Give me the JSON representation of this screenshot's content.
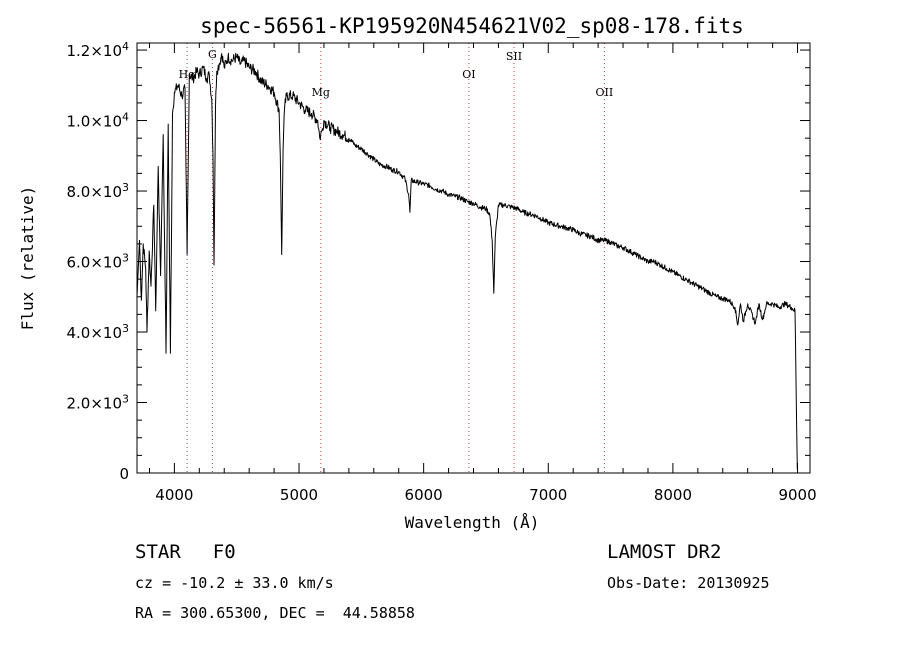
{
  "chart_data": {
    "type": "line",
    "title": "spec-56561-KP195920N454621V02_sp08-178.fits",
    "xlabel": "Wavelength (Å)",
    "ylabel": "Flux (relative)",
    "xlim": [
      3700,
      9100
    ],
    "ylim": [
      0,
      12200
    ],
    "x_ticks": [
      4000,
      5000,
      6000,
      7000,
      8000,
      9000
    ],
    "x_tick_labels": [
      "4000",
      "5000",
      "6000",
      "7000",
      "8000",
      "9000"
    ],
    "y_ticks": [
      0,
      2000,
      4000,
      6000,
      8000,
      10000,
      12000
    ],
    "y_tick_labels": [
      {
        "mantissa": "0",
        "exp": ""
      },
      {
        "mantissa": "2.0×10",
        "exp": "3"
      },
      {
        "mantissa": "4.0×10",
        "exp": "3"
      },
      {
        "mantissa": "6.0×10",
        "exp": "3"
      },
      {
        "mantissa": "8.0×10",
        "exp": "3"
      },
      {
        "mantissa": "1.0×10",
        "exp": "4"
      },
      {
        "mantissa": "1.2×10",
        "exp": "4"
      }
    ],
    "spectral_lines": [
      {
        "label": "Hα",
        "x": 4102
      },
      {
        "label": "G",
        "x": 4305
      },
      {
        "label": "Mg",
        "x": 5175
      },
      {
        "label": "OI",
        "x": 6363
      },
      {
        "label": "SII",
        "x": 6725
      },
      {
        "label": "OII",
        "x": 7450
      }
    ],
    "series": [
      {
        "line_color": "#000000",
        "x": [
          3700,
          3720,
          3735,
          3750,
          3770,
          3780,
          3798,
          3812,
          3835,
          3850,
          3870,
          3889,
          3910,
          3933,
          3950,
          3968,
          3985,
          4000,
          4030,
          4060,
          4085,
          4102,
          4120,
          4150,
          4180,
          4200,
          4230,
          4260,
          4280,
          4300,
          4310,
          4318,
          4330,
          4340,
          4350,
          4360,
          4380,
          4400,
          4430,
          4460,
          4500,
          4530,
          4560,
          4600,
          4650,
          4700,
          4750,
          4800,
          4840,
          4850,
          4861,
          4872,
          4885,
          4900,
          4950,
          5000,
          5050,
          5100,
          5150,
          5167,
          5183,
          5200,
          5250,
          5300,
          5350,
          5400,
          5450,
          5500,
          5550,
          5600,
          5650,
          5700,
          5750,
          5800,
          5850,
          5880,
          5890,
          5900,
          5950,
          6000,
          6050,
          6100,
          6150,
          6200,
          6250,
          6300,
          6350,
          6400,
          6450,
          6500,
          6530,
          6550,
          6563,
          6575,
          6600,
          6650,
          6700,
          6750,
          6800,
          6850,
          6900,
          6950,
          7000,
          7050,
          7100,
          7150,
          7200,
          7250,
          7300,
          7350,
          7400,
          7450,
          7500,
          7550,
          7600,
          7650,
          7700,
          7750,
          7800,
          7850,
          7900,
          7950,
          8000,
          8050,
          8100,
          8150,
          8200,
          8250,
          8300,
          8350,
          8400,
          8450,
          8498,
          8520,
          8542,
          8565,
          8600,
          8662,
          8690,
          8720,
          8750,
          8800,
          8850,
          8900,
          8950,
          8980,
          8990,
          8998
        ],
        "y": [
          5000,
          6600,
          4900,
          6500,
          5800,
          4000,
          6300,
          5300,
          7600,
          4600,
          8700,
          5600,
          9600,
          3400,
          9900,
          3400,
          10200,
          10800,
          11000,
          10700,
          10900,
          6200,
          11300,
          11200,
          11400,
          11300,
          11500,
          11200,
          11300,
          10600,
          9000,
          5900,
          10400,
          11400,
          11500,
          11600,
          11900,
          11500,
          11800,
          11700,
          11800,
          11600,
          11700,
          11500,
          11400,
          11100,
          11000,
          10800,
          10300,
          9000,
          6200,
          9200,
          10400,
          10700,
          10700,
          10500,
          10300,
          10200,
          10000,
          9500,
          9700,
          10000,
          9800,
          9700,
          9600,
          9500,
          9300,
          9200,
          9050,
          8900,
          8750,
          8700,
          8600,
          8550,
          8350,
          7900,
          7400,
          8300,
          8250,
          8200,
          8150,
          8050,
          8000,
          7900,
          7850,
          7800,
          7700,
          7650,
          7550,
          7500,
          7350,
          6600,
          5100,
          6700,
          7600,
          7600,
          7550,
          7500,
          7400,
          7350,
          7300,
          7200,
          7100,
          7050,
          7000,
          6950,
          6900,
          6800,
          6750,
          6700,
          6600,
          6600,
          6550,
          6450,
          6400,
          6300,
          6200,
          6100,
          6000,
          6000,
          5900,
          5800,
          5700,
          5600,
          5500,
          5400,
          5300,
          5200,
          5100,
          5000,
          4950,
          4900,
          4700,
          4200,
          4800,
          4300,
          4800,
          4250,
          4800,
          4350,
          4800,
          4800,
          4700,
          4800,
          4700,
          4600,
          2000,
          100
        ]
      }
    ]
  },
  "info": {
    "object_class": "STAR",
    "subclass": "F0",
    "survey": "LAMOST DR2",
    "redshift": "cz = -10.2 ± 33.0 km/s",
    "obs_date": "Obs-Date: 20130925",
    "coords": "RA = 300.65300, DEC =  44.58858"
  }
}
